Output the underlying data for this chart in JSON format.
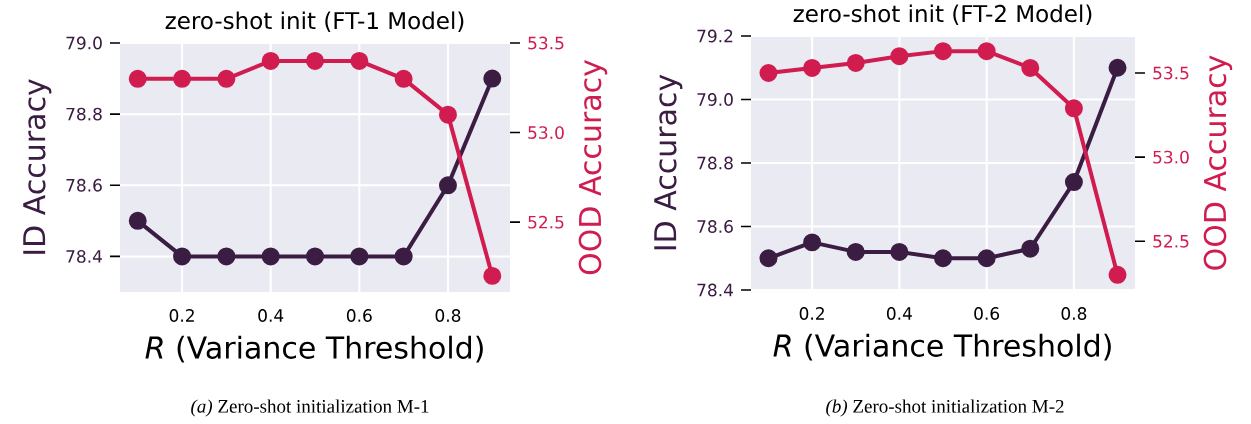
{
  "chart_data": [
    {
      "type": "line",
      "title": "zero-shot init (FT-1 Model)",
      "xlabel": "*R* (Variance Threshold)",
      "ylabel": "ID Accuracy",
      "y2label": "OOD Accuracy",
      "annotations": [
        "*(a)* Zero-shot initialization M-1"
      ],
      "x": [
        0.1,
        0.2,
        0.3,
        0.4,
        0.5,
        0.6,
        0.7,
        0.8,
        0.9
      ],
      "marker": "circle",
      "grid": true,
      "series": [
        {
          "color": "#3b1c42",
          "values": [
            78.5,
            78.4,
            78.4,
            78.4,
            78.4,
            78.4,
            78.4,
            78.6,
            78.9
          ]
        },
        {
          "color": "#d01c4f",
          "axis": "y2",
          "values": [
            53.3,
            53.3,
            53.3,
            53.4,
            53.4,
            53.4,
            53.3,
            53.1,
            52.2
          ]
        }
      ],
      "xlim": [
        0.06,
        0.94
      ],
      "xticks": [
        0.2,
        0.4,
        0.6,
        0.8
      ],
      "ylim": [
        78.3,
        79.0
      ],
      "yticks": [
        {
          "value": 78.4,
          "label": "78.4"
        },
        {
          "value": 78.6,
          "label": "78.6"
        },
        {
          "value": 78.8,
          "label": "78.8"
        },
        {
          "value": 79.0,
          "label": "79.0"
        }
      ],
      "y2lim": [
        52.11,
        53.5
      ],
      "y2ticks": [
        {
          "value": 52.5,
          "label": "52.5"
        },
        {
          "value": 53.0,
          "label": "53.0"
        },
        {
          "value": 53.5,
          "label": "53.5"
        }
      ]
    },
    {
      "type": "line",
      "title": "zero-shot init (FT-2 Model)",
      "xlabel": "*R* (Variance Threshold)",
      "ylabel": "ID Accuracy",
      "y2label": "OOD Accuracy",
      "annotations": [
        "*(b)* Zero-shot initialization M-2"
      ],
      "x": [
        0.1,
        0.2,
        0.3,
        0.4,
        0.5,
        0.6,
        0.7,
        0.8,
        0.9
      ],
      "marker": "circle",
      "grid": true,
      "series": [
        {
          "color": "#3b1c42",
          "values": [
            78.5,
            78.55,
            78.52,
            78.52,
            78.5,
            78.5,
            78.53,
            78.74,
            79.1
          ]
        },
        {
          "color": "#d01c4f",
          "axis": "y2",
          "values": [
            53.5,
            53.53,
            53.56,
            53.6,
            53.63,
            53.63,
            53.53,
            53.29,
            52.3
          ]
        }
      ],
      "xlim": [
        0.06,
        0.94
      ],
      "xticks": [
        0.2,
        0.4,
        0.6,
        0.8
      ],
      "ylim": [
        78.4,
        79.2
      ],
      "yticks": [
        {
          "value": 78.4,
          "label": "78.4"
        },
        {
          "value": 78.6,
          "label": "78.6"
        },
        {
          "value": 78.8,
          "label": "78.8"
        },
        {
          "value": 79.0,
          "label": "79.0"
        },
        {
          "value": 79.2,
          "label": "79.2"
        }
      ],
      "y2lim": [
        52.21,
        53.72
      ],
      "y2ticks": [
        {
          "value": 52.5,
          "label": "52.5"
        },
        {
          "value": 53.0,
          "label": "53.0"
        },
        {
          "value": 53.5,
          "label": "53.5"
        }
      ]
    }
  ]
}
